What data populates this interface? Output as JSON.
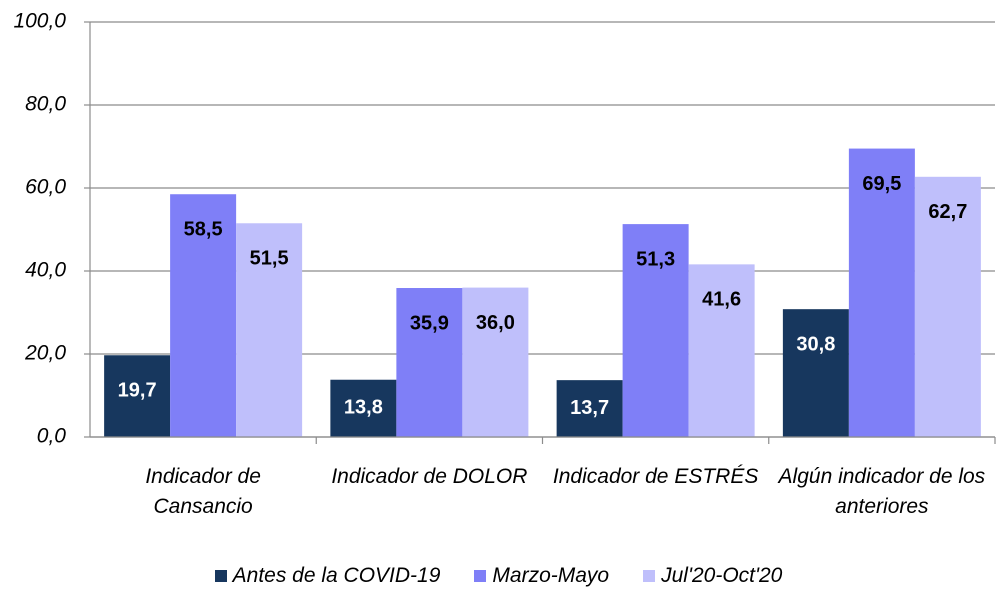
{
  "chart_data": {
    "type": "bar",
    "categories": [
      "Indicador de Cansancio",
      "Indicador de DOLOR",
      "Indicador de ESTRÉS",
      "Algún indicador de los anteriores"
    ],
    "series": [
      {
        "name": "Antes de la COVID-19",
        "color": "#17375e",
        "values": [
          19.7,
          13.8,
          13.7,
          30.8
        ],
        "value_labels": [
          "19,7",
          "13,8",
          "13,7",
          "30,8"
        ]
      },
      {
        "name": "Marzo-Mayo",
        "color": "#7f7ff7",
        "values": [
          58.5,
          35.9,
          51.3,
          69.5
        ],
        "value_labels": [
          "58,5",
          "35,9",
          "51,3",
          "69,5"
        ]
      },
      {
        "name": "Jul'20-Oct'20",
        "color": "#bfbffb",
        "values": [
          51.5,
          36.0,
          41.6,
          62.7
        ],
        "value_labels": [
          "51,5",
          "36,0",
          "41,6",
          "62,7"
        ]
      }
    ],
    "ylim": [
      0,
      100
    ],
    "yticks": [
      {
        "value": 0,
        "label": "0,0"
      },
      {
        "value": 20,
        "label": "20,0"
      },
      {
        "value": 40,
        "label": "40,0"
      },
      {
        "value": 60,
        "label": "60,0"
      },
      {
        "value": 80,
        "label": "80,0"
      },
      {
        "value": 100,
        "label": "100,0"
      }
    ],
    "grid": true
  }
}
